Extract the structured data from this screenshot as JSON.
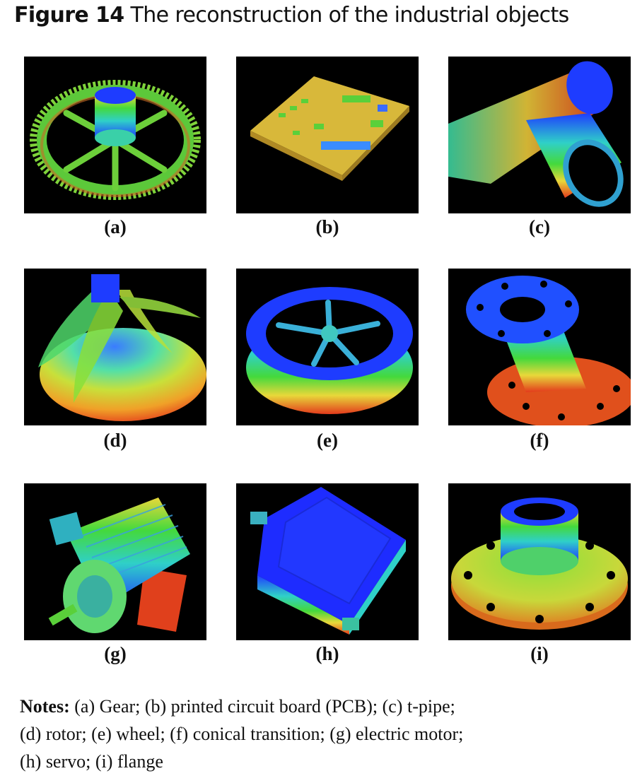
{
  "figure": {
    "label": "Figure 14",
    "title": "The reconstruction of the industrial objects"
  },
  "panels": [
    {
      "letter": "(a)",
      "object": "gear-icon"
    },
    {
      "letter": "(b)",
      "object": "pcb-icon"
    },
    {
      "letter": "(c)",
      "object": "t-pipe-icon"
    },
    {
      "letter": "(d)",
      "object": "rotor-icon"
    },
    {
      "letter": "(e)",
      "object": "wheel-icon"
    },
    {
      "letter": "(f)",
      "object": "conical-transition-icon"
    },
    {
      "letter": "(g)",
      "object": "electric-motor-icon"
    },
    {
      "letter": "(h)",
      "object": "servo-icon"
    },
    {
      "letter": "(i)",
      "object": "flange-icon"
    }
  ],
  "notes": {
    "label": "Notes:",
    "line1": " (a) Gear; (b) printed circuit board (PCB); (c) t-pipe;",
    "line2": "(d) rotor; (e) wheel; (f) conical transition; (g) electric motor;",
    "line3": "(h) servo; (i) flange"
  },
  "colors": {
    "blue": "#1a3cff",
    "green": "#3ccf3c",
    "yellow": "#e6d23a",
    "red": "#e0421e",
    "background": "#000000"
  }
}
